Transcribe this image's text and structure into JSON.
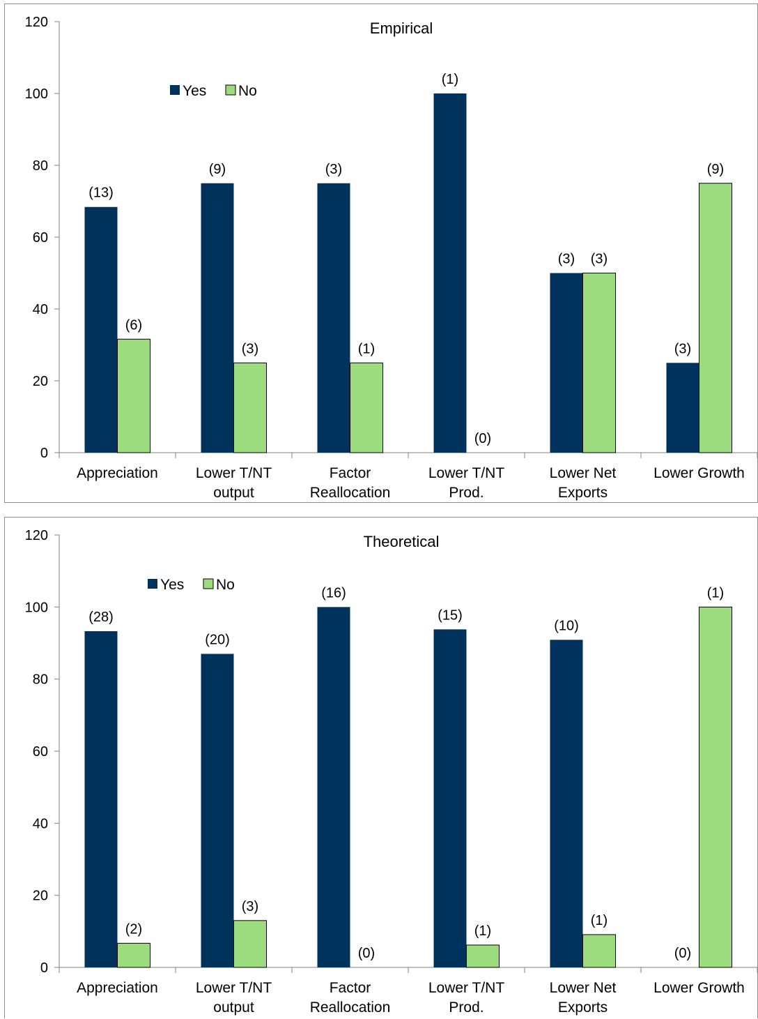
{
  "colors": {
    "yes": "#00335c",
    "no": "#9ddc7e",
    "axis": "#808080",
    "frame": "#8c8c8c"
  },
  "chart_data": [
    {
      "type": "bar",
      "title": "Empirical",
      "ylim": [
        0,
        120
      ],
      "yticks": [
        0,
        20,
        40,
        60,
        80,
        100,
        120
      ],
      "legend_position": "top-left",
      "grid": false,
      "categories": [
        [
          "Appreciation"
        ],
        [
          "Lower T/NT",
          "output"
        ],
        [
          "Factor",
          "Reallocation"
        ],
        [
          "Lower T/NT",
          "Prod."
        ],
        [
          "Lower Net",
          "Exports"
        ],
        [
          "Lower Growth"
        ]
      ],
      "series": [
        {
          "name": "Yes",
          "values": [
            68.4,
            75,
            75,
            100,
            50,
            25
          ],
          "labels": [
            "(13)",
            "(9)",
            "(3)",
            "(1)",
            "(3)",
            "(3)"
          ]
        },
        {
          "name": "No",
          "values": [
            31.6,
            25,
            25,
            0,
            50,
            75
          ],
          "labels": [
            "(6)",
            "(3)",
            "(1)",
            "(0)",
            "(3)",
            "(9)"
          ]
        }
      ]
    },
    {
      "type": "bar",
      "title": "Theoretical",
      "ylim": [
        0,
        120
      ],
      "yticks": [
        0,
        20,
        40,
        60,
        80,
        100,
        120
      ],
      "legend_position": "top-left",
      "grid": false,
      "categories": [
        [
          "Appreciation"
        ],
        [
          "Lower T/NT",
          "output"
        ],
        [
          "Factor",
          "Reallocation"
        ],
        [
          "Lower T/NT",
          "Prod."
        ],
        [
          "Lower Net",
          "Exports"
        ],
        [
          "Lower Growth"
        ]
      ],
      "series": [
        {
          "name": "Yes",
          "values": [
            93.3,
            87,
            100,
            93.8,
            90.9,
            0
          ],
          "labels": [
            "(28)",
            "(20)",
            "(16)",
            "(15)",
            "(10)",
            "(0)"
          ]
        },
        {
          "name": "No",
          "values": [
            6.7,
            13,
            0,
            6.2,
            9.1,
            100
          ],
          "labels": [
            "(2)",
            "(3)",
            "(0)",
            "(1)",
            "(1)",
            "(1)"
          ]
        }
      ]
    }
  ]
}
